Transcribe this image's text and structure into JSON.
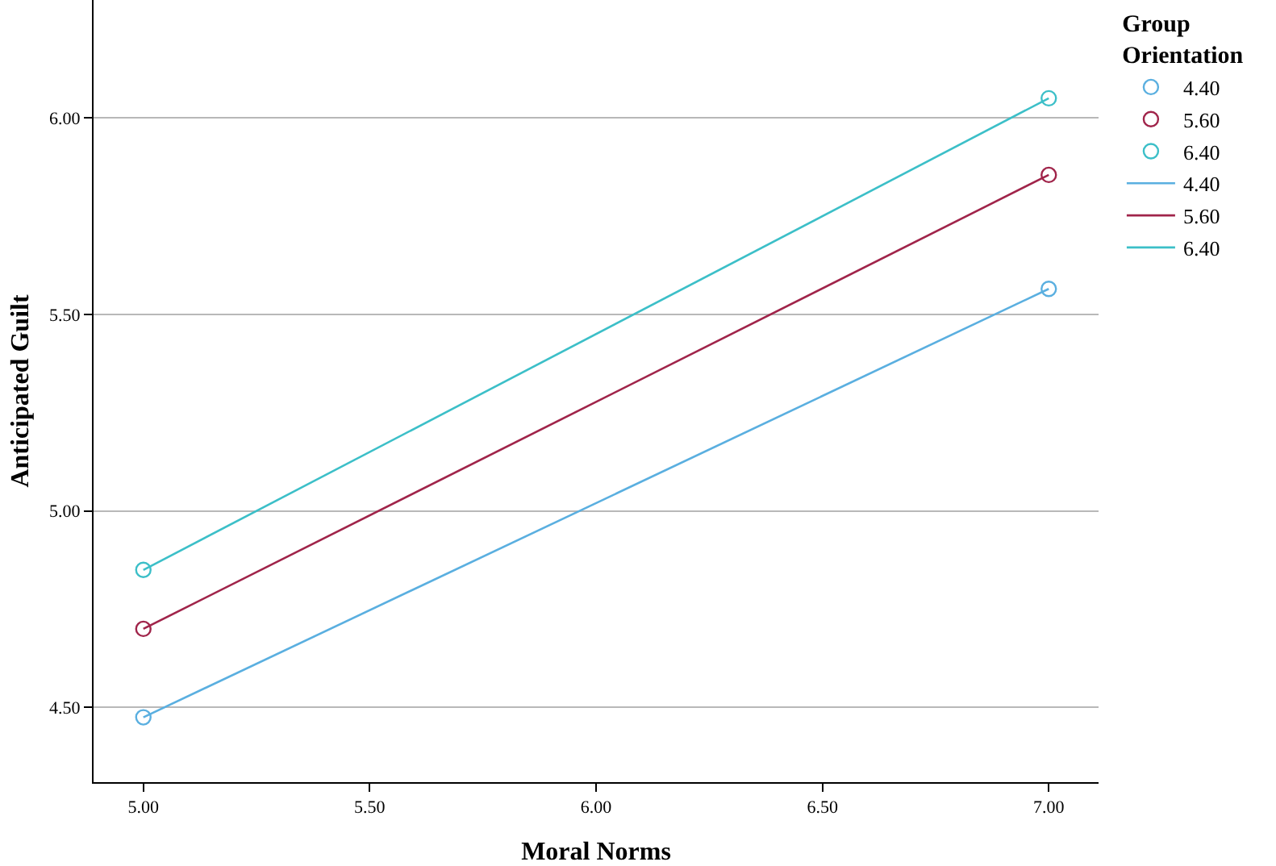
{
  "chart_data": {
    "type": "line",
    "xlabel": "Moral Norms",
    "ylabel": "Anticipated Guilt",
    "legend_title": "Group Orientation",
    "x": [
      5,
      7
    ],
    "xlim": [
      4.89,
      7.11
    ],
    "xticks": [
      {
        "value": 5,
        "label": "5.00"
      },
      {
        "value": 5.5,
        "label": "5.50"
      },
      {
        "value": 6,
        "label": "6.00"
      },
      {
        "value": 6.5,
        "label": "6.50"
      },
      {
        "value": 7,
        "label": "7.00"
      }
    ],
    "ylim": [
      4.31,
      6.3
    ],
    "yticks": [
      {
        "value": 4.5,
        "label": "4.50"
      },
      {
        "value": 5,
        "label": "5.00"
      },
      {
        "value": 5.5,
        "label": "5.50"
      },
      {
        "value": 6,
        "label": "6.00"
      }
    ],
    "grid": "y",
    "legend": "top right",
    "line_style": "solid",
    "series": [
      {
        "name": "4.40",
        "type": "scatter",
        "marker": "circle",
        "color": "#5aafe0",
        "values": [
          4.475,
          5.565
        ]
      },
      {
        "name": "5.60",
        "type": "scatter",
        "marker": "circle",
        "color": "#a0244a",
        "values": [
          4.7,
          5.855
        ]
      },
      {
        "name": "6.40",
        "type": "scatter",
        "marker": "circle",
        "color": "#3cbfc8",
        "values": [
          4.85,
          6.05
        ]
      },
      {
        "name": "4.40",
        "marker": "none",
        "color": "#5aafe0",
        "values": [
          4.475,
          5.565
        ]
      },
      {
        "name": "5.60",
        "marker": "none",
        "color": "#a0244a",
        "values": [
          4.7,
          5.855
        ]
      },
      {
        "name": "6.40",
        "marker": "none",
        "color": "#3cbfc8",
        "values": [
          4.85,
          6.05
        ]
      }
    ]
  }
}
